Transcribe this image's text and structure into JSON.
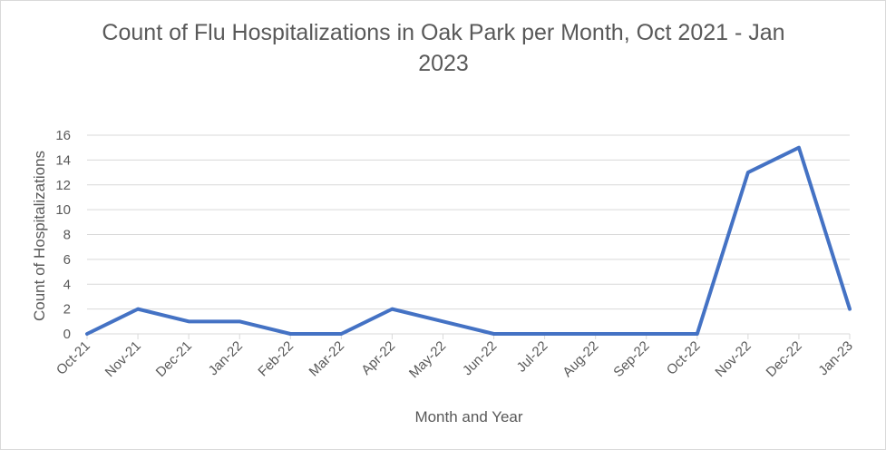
{
  "chart_data": {
    "type": "line",
    "title": "Count of Flu Hospitalizations in Oak Park per Month, Oct 2021 - Jan 2023",
    "xlabel": "Month and Year",
    "ylabel": "Count of Hospitalizations",
    "categories": [
      "Oct-21",
      "Nov-21",
      "Dec-21",
      "Jan-22",
      "Feb-22",
      "Mar-22",
      "Apr-22",
      "May-22",
      "Jun-22",
      "Jul-22",
      "Aug-22",
      "Sep-22",
      "Oct-22",
      "Nov-22",
      "Dec-22",
      "Jan-23"
    ],
    "series": [
      {
        "values": [
          0,
          2,
          1,
          1,
          0,
          0,
          2,
          1,
          0,
          0,
          0,
          0,
          0,
          13,
          15,
          2
        ]
      }
    ],
    "ylim": [
      0,
      16
    ],
    "yticks": [
      0,
      2,
      4,
      6,
      8,
      10,
      12,
      14,
      16
    ],
    "grid": true,
    "legend": "none",
    "colors": {
      "line": "#4472c4",
      "grid": "#d9d9d9",
      "text": "#595959"
    }
  }
}
